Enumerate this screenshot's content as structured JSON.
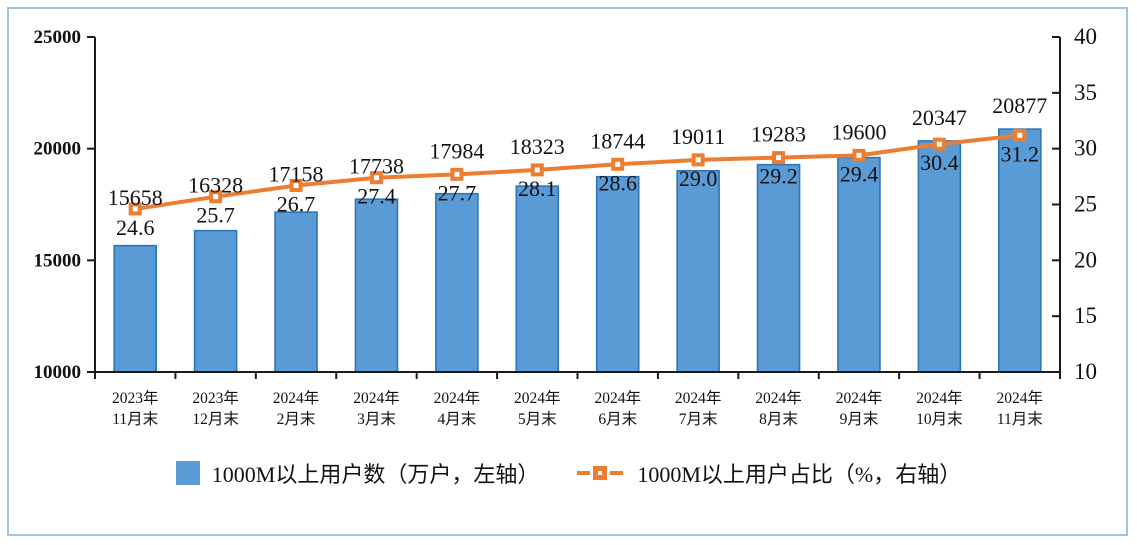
{
  "chart_data": {
    "type": "combo-bar-line",
    "title": "",
    "categories": [
      [
        "2023年",
        "11月末"
      ],
      [
        "2023年",
        "12月末"
      ],
      [
        "2024年",
        "2月末"
      ],
      [
        "2024年",
        "3月末"
      ],
      [
        "2024年",
        "4月末"
      ],
      [
        "2024年",
        "5月末"
      ],
      [
        "2024年",
        "6月末"
      ],
      [
        "2024年",
        "7月末"
      ],
      [
        "2024年",
        "8月末"
      ],
      [
        "2024年",
        "9月末"
      ],
      [
        "2024年",
        "10月末"
      ],
      [
        "2024年",
        "11月末"
      ]
    ],
    "series": [
      {
        "name": "1000M以上用户数",
        "type": "bar",
        "axis": "left",
        "unit": "万户",
        "legend_label": "1000M以上用户数（万户，左轴）",
        "values": [
          15658,
          16328,
          17158,
          17738,
          17984,
          18323,
          18744,
          19011,
          19283,
          19600,
          20347,
          20877
        ]
      },
      {
        "name": "1000M以上用户占比",
        "type": "line",
        "axis": "right",
        "unit": "%",
        "legend_label": "1000M以上用户占比（%，右轴）",
        "values": [
          24.6,
          25.7,
          26.7,
          27.4,
          27.7,
          28.1,
          28.6,
          29.0,
          29.2,
          29.4,
          30.4,
          31.2
        ]
      }
    ],
    "left_axis": {
      "min": 10000,
      "max": 25000,
      "ticks": [
        25000,
        20000,
        15000,
        10000
      ]
    },
    "right_axis": {
      "min": 10,
      "max": 40,
      "ticks": [
        40,
        35,
        30,
        25,
        20,
        15,
        10
      ]
    },
    "grid": false,
    "legend_position": "bottom",
    "colors": {
      "bar_fill": "#5B9BD5",
      "bar_border": "#2E75B6",
      "line": "#ED7D31",
      "marker_inner": "#FFFFFF",
      "axis": "#1a1a1a",
      "frame_border": "#9DC3E6"
    }
  }
}
